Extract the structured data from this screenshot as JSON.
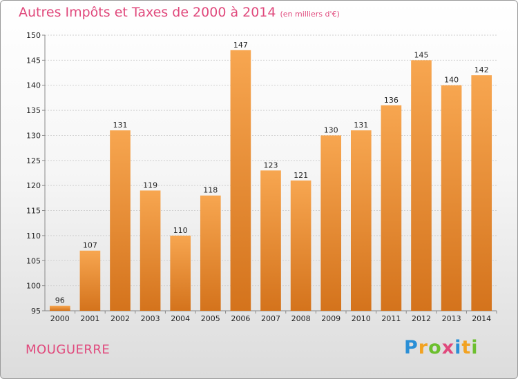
{
  "title": "Autres Impôts et Taxes de 2000 à 2014",
  "unit": "(en milliers d'€)",
  "commune": "MOUGUERRE",
  "logo": {
    "letters": [
      {
        "ch": "P",
        "color": "#2a8fd6"
      },
      {
        "ch": "r",
        "color": "#f2a221"
      },
      {
        "ch": "o",
        "color": "#6cbf2e"
      },
      {
        "ch": "x",
        "color": "#e0497c"
      },
      {
        "ch": "i",
        "color": "#2a8fd6"
      },
      {
        "ch": "t",
        "color": "#f2a221"
      },
      {
        "ch": "i",
        "color": "#6cbf2e"
      }
    ]
  },
  "colors": {
    "title": "#e0497c",
    "bar_light": "#f7a650",
    "bar_dark": "#d4731c",
    "grid": "#d0d0d0",
    "axis": "#888888"
  },
  "chart_data": {
    "type": "bar",
    "categories": [
      "2000",
      "2001",
      "2002",
      "2003",
      "2004",
      "2005",
      "2006",
      "2007",
      "2008",
      "2009",
      "2010",
      "2011",
      "2012",
      "2013",
      "2014"
    ],
    "values": [
      96,
      107,
      131,
      119,
      110,
      118,
      147,
      123,
      121,
      130,
      131,
      136,
      145,
      140,
      142
    ],
    "ylim": [
      95,
      150
    ],
    "yticks": [
      95,
      100,
      105,
      110,
      115,
      120,
      125,
      130,
      135,
      140,
      145,
      150
    ],
    "grid": true
  }
}
